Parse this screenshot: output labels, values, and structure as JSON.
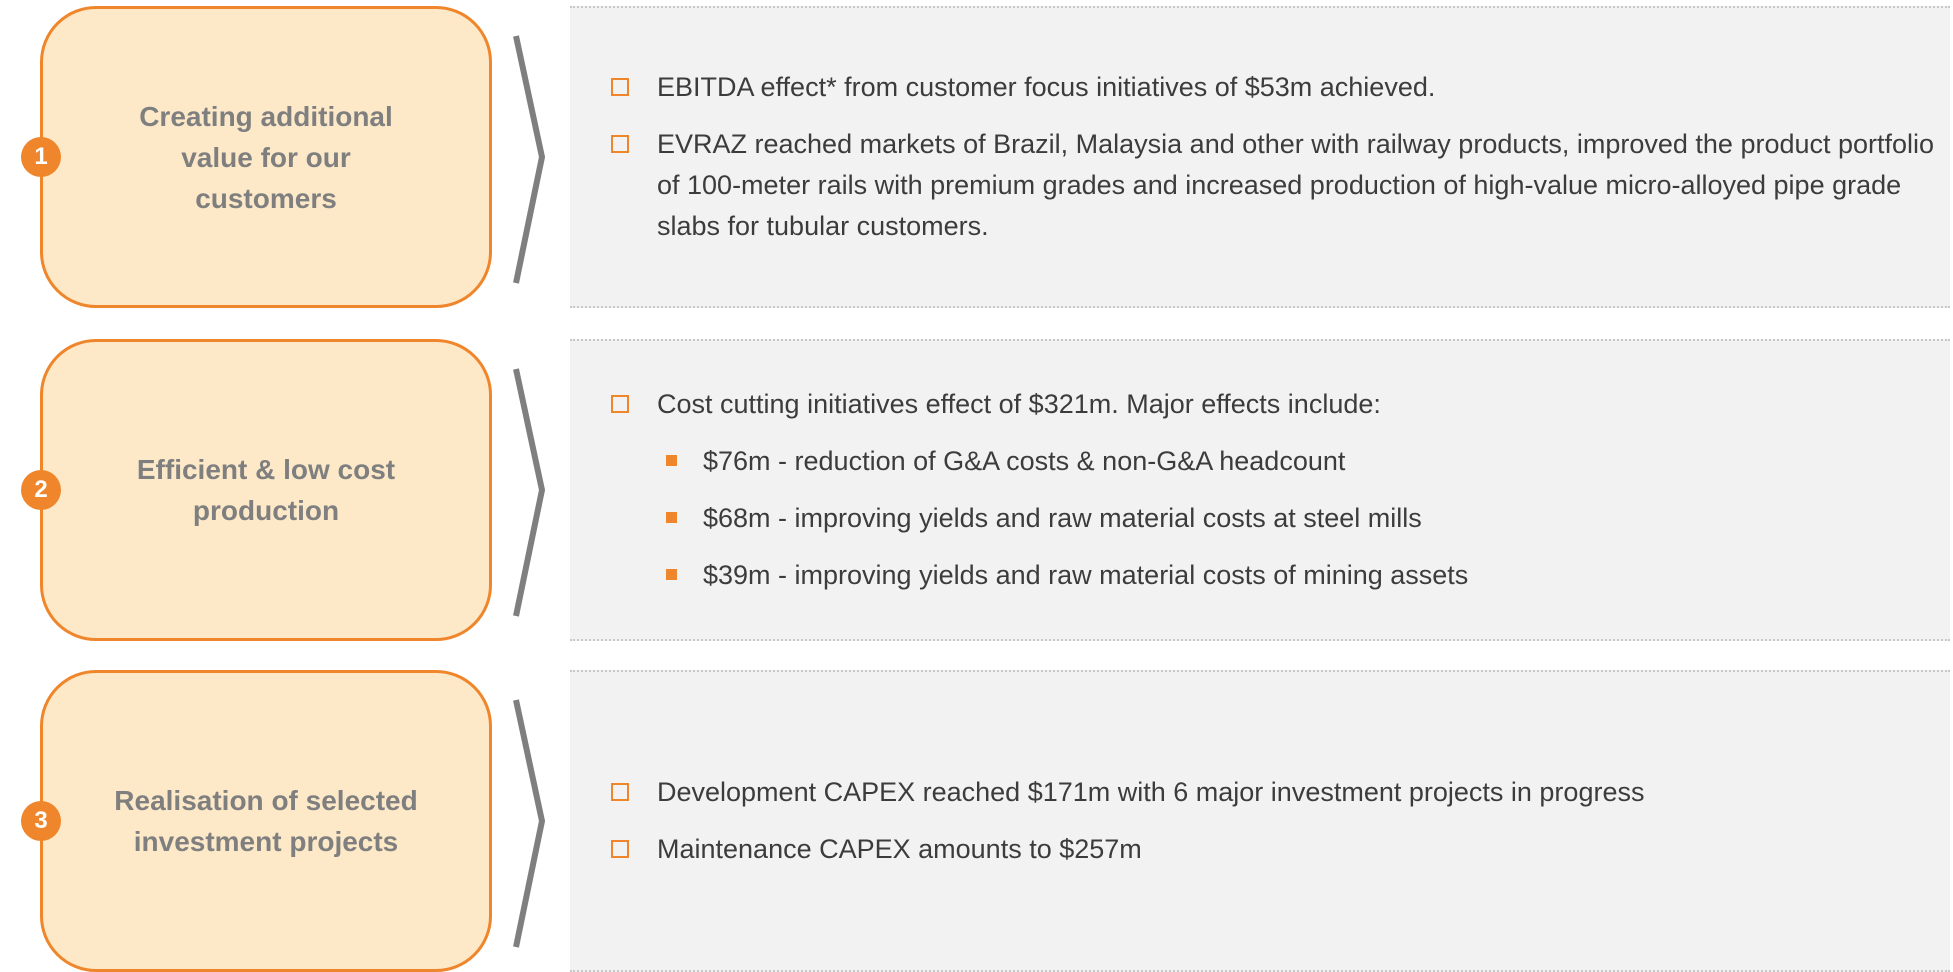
{
  "sections": [
    {
      "number": "1",
      "title_lines": [
        "Creating additional",
        "value for our",
        "customers"
      ],
      "bullets": [
        {
          "text": "EBITDA effect* from customer focus initiatives of $53m achieved.",
          "sub": []
        },
        {
          "text": "EVRAZ reached markets of Brazil, Malaysia and other with railway products, improved the product portfolio of 100-meter rails with premium grades and increased production of high-value micro-alloyed pipe grade slabs for tubular customers.",
          "sub": []
        }
      ]
    },
    {
      "number": "2",
      "title_lines": [
        "Efficient & low cost",
        "production"
      ],
      "bullets": [
        {
          "text": "Cost cutting initiatives effect of $321m. Major effects include:",
          "sub": [
            "$76m - reduction of G&A costs & non-G&A headcount",
            "$68m - improving yields and raw material costs at steel mills",
            "$39m - improving yields and raw material costs of mining assets"
          ]
        }
      ]
    },
    {
      "number": "3",
      "title_lines": [
        "Realisation of selected",
        "investment projects"
      ],
      "bullets": [
        {
          "text": "Development CAPEX reached $171m with 6 major investment projects in progress",
          "sub": []
        },
        {
          "text": "Maintenance CAPEX amounts to $257m",
          "sub": []
        }
      ]
    }
  ]
}
